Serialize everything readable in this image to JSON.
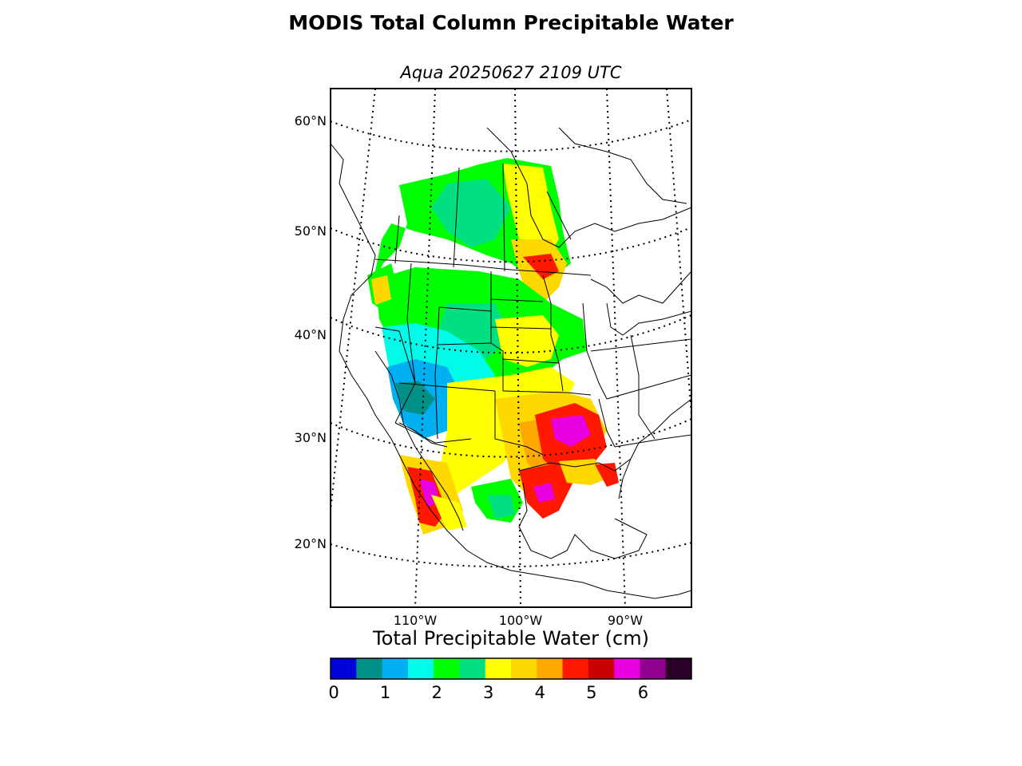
{
  "title": "MODIS Total Column Precipitable Water",
  "subtitle": "Aqua 20250627 2109 UTC",
  "map": {
    "lat_labels": [
      "60°N",
      "50°N",
      "40°N",
      "30°N",
      "20°N"
    ],
    "lon_labels": [
      "110°W",
      "100°W",
      "90°W"
    ]
  },
  "colorbar": {
    "label": "Total Precipitable Water (cm)",
    "colors": [
      "#0000d8",
      "#009088",
      "#00b0f0",
      "#00fce8",
      "#00ff00",
      "#00e080",
      "#ffff00",
      "#ffd800",
      "#ffa800",
      "#ff1800",
      "#c80000",
      "#e800e0",
      "#900090",
      "#280028"
    ],
    "ticks": [
      "0",
      "1",
      "2",
      "3",
      "4",
      "5",
      "6"
    ],
    "tick_values": [
      0,
      1,
      2,
      3,
      4,
      5,
      6
    ],
    "range": [
      0,
      7
    ]
  }
}
